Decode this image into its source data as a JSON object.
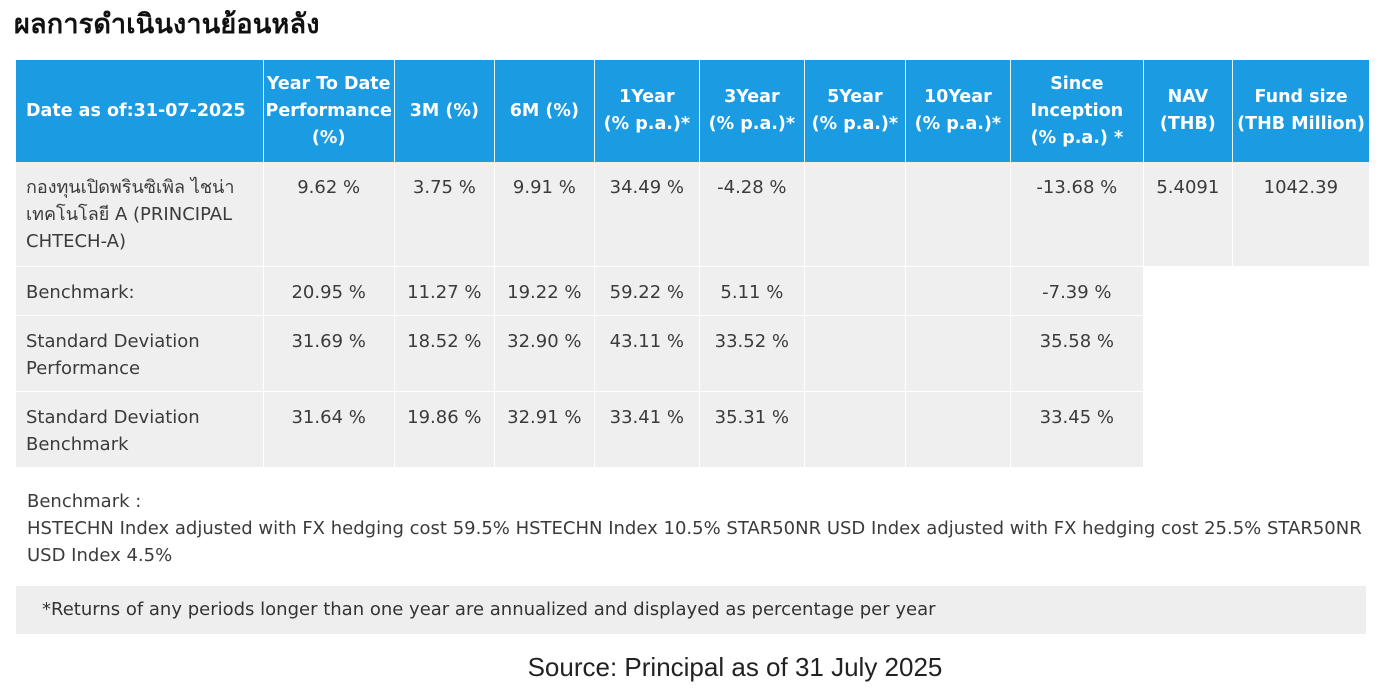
{
  "title": "ผลการดำเนินงานย้อนหลัง",
  "colors": {
    "header_bg": "#1a9be2",
    "header_text": "#ffffff",
    "cell_bg": "#efefef",
    "footnote_bg": "#eeeeee"
  },
  "table": {
    "headers": [
      [
        "Date as of:31-07-2025"
      ],
      [
        "Year To Date",
        "Performance",
        "(%)"
      ],
      [
        "3M (%)"
      ],
      [
        "6M (%)"
      ],
      [
        "1Year",
        "(% p.a.)*"
      ],
      [
        "3Year",
        "(% p.a.)*"
      ],
      [
        "5Year",
        "(% p.a.)*"
      ],
      [
        "10Year",
        "(% p.a.)*"
      ],
      [
        "Since",
        "Inception",
        "(% p.a.) *"
      ],
      [
        "NAV",
        "(THB)"
      ],
      [
        "Fund size",
        "(THB Million)"
      ]
    ],
    "rows": [
      {
        "label": [
          "กองทุนเปิดพรินซิเพิล ไชน่า",
          "เทคโนโลยี A (PRINCIPAL",
          "CHTECH-A)"
        ],
        "cells": [
          "9.62 %",
          "3.75 %",
          "9.91 %",
          "34.49 %",
          "-4.28 %",
          "",
          "",
          "-13.68 %",
          "5.4091",
          "1042.39"
        ]
      },
      {
        "label": [
          "Benchmark:"
        ],
        "cells": [
          "20.95 %",
          "11.27 %",
          "19.22 %",
          "59.22 %",
          "5.11 %",
          "",
          "",
          "-7.39 %"
        ]
      },
      {
        "label": [
          "Standard Deviation",
          "Performance"
        ],
        "cells": [
          "31.69 %",
          "18.52 %",
          "32.90 %",
          "43.11 %",
          "33.52 %",
          "",
          "",
          "35.58 %"
        ]
      },
      {
        "label": [
          "Standard Deviation",
          "Benchmark"
        ],
        "cells": [
          "31.64 %",
          "19.86 %",
          "32.91 %",
          "33.41 %",
          "35.31 %",
          "",
          "",
          "33.45 %"
        ]
      }
    ]
  },
  "benchmark_note": {
    "heading": "Benchmark :",
    "lines": [
      "HSTECHN Index adjusted with FX hedging cost 59.5% HSTECHN Index 10.5% STAR50NR USD Index adjusted with FX hedging cost 25.5% STAR50NR",
      "USD Index 4.5%"
    ]
  },
  "footnote": "*Returns of any periods longer than one year are annualized and displayed as percentage per year",
  "source": "Source: Principal as of 31 July 2025"
}
